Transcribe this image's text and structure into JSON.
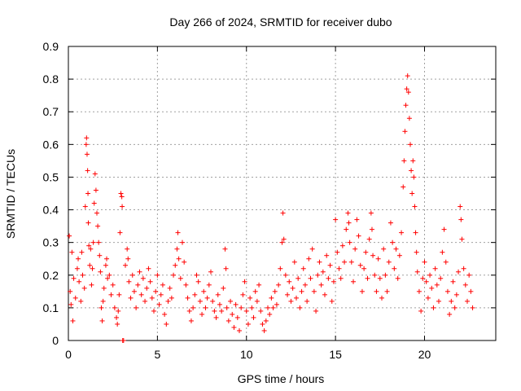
{
  "chart_data": {
    "type": "scatter",
    "title": "Day 266 of 2024, SRMTID for receiver dubo",
    "xlabel": "GPS time / hours",
    "ylabel": "SRMTID / TECUs",
    "xlim": [
      0,
      24
    ],
    "ylim": [
      0,
      0.9
    ],
    "xticks": [
      0,
      5,
      10,
      15,
      20
    ],
    "xtick_labels": [
      "0",
      "5",
      "10",
      "15",
      "20"
    ],
    "yticks": [
      0,
      0.1,
      0.2,
      0.3,
      0.4,
      0.5,
      0.6,
      0.7,
      0.8,
      0.9
    ],
    "ytick_labels": [
      "0",
      "0.1",
      "0.2",
      "0.3",
      "0.4",
      "0.5",
      "0.6",
      "0.7",
      "0.8",
      "0.9"
    ],
    "grid": true,
    "marker": "+",
    "color": "#ff0000",
    "series": [
      {
        "name": "SRMTID",
        "points": [
          [
            0.05,
            0.32
          ],
          [
            0.1,
            0.15
          ],
          [
            0.15,
            0.11
          ],
          [
            0.2,
            0.27
          ],
          [
            0.25,
            0.06
          ],
          [
            0.3,
            0.19
          ],
          [
            0.4,
            0.13
          ],
          [
            0.5,
            0.22
          ],
          [
            0.55,
            0.25
          ],
          [
            0.6,
            0.18
          ],
          [
            0.7,
            0.12
          ],
          [
            0.75,
            0.27
          ],
          [
            0.8,
            0.2
          ],
          [
            0.9,
            0.16
          ],
          [
            0.95,
            0.41
          ],
          [
            1.0,
            0.6
          ],
          [
            1.02,
            0.62
          ],
          [
            1.05,
            0.57
          ],
          [
            1.08,
            0.52
          ],
          [
            1.1,
            0.45
          ],
          [
            1.12,
            0.36
          ],
          [
            1.15,
            0.29
          ],
          [
            1.2,
            0.23
          ],
          [
            1.25,
            0.28
          ],
          [
            1.3,
            0.17
          ],
          [
            1.35,
            0.22
          ],
          [
            1.4,
            0.3
          ],
          [
            1.45,
            0.42
          ],
          [
            1.5,
            0.51
          ],
          [
            1.55,
            0.46
          ],
          [
            1.6,
            0.39
          ],
          [
            1.65,
            0.35
          ],
          [
            1.7,
            0.3
          ],
          [
            1.75,
            0.26
          ],
          [
            1.8,
            0.21
          ],
          [
            1.85,
            0.1
          ],
          [
            1.9,
            0.06
          ],
          [
            1.95,
            0.12
          ],
          [
            2.0,
            0.16
          ],
          [
            2.1,
            0.23
          ],
          [
            2.15,
            0.25
          ],
          [
            2.2,
            0.19
          ],
          [
            2.3,
            0.2
          ],
          [
            2.4,
            0.14
          ],
          [
            2.5,
            0.17
          ],
          [
            2.6,
            0.1
          ],
          [
            2.7,
            0.07
          ],
          [
            2.75,
            0.05
          ],
          [
            2.8,
            0.09
          ],
          [
            2.85,
            0.14
          ],
          [
            2.9,
            0.33
          ],
          [
            2.95,
            0.45
          ],
          [
            3.0,
            0.44
          ],
          [
            3.02,
            0.41
          ],
          [
            3.05,
            0.0
          ],
          [
            3.1,
            0.0
          ],
          [
            3.2,
            0.23
          ],
          [
            3.3,
            0.28
          ],
          [
            3.35,
            0.25
          ],
          [
            3.4,
            0.18
          ],
          [
            3.5,
            0.13
          ],
          [
            3.6,
            0.2
          ],
          [
            3.7,
            0.15
          ],
          [
            3.8,
            0.1
          ],
          [
            3.9,
            0.17
          ],
          [
            4.0,
            0.21
          ],
          [
            4.1,
            0.14
          ],
          [
            4.2,
            0.19
          ],
          [
            4.3,
            0.12
          ],
          [
            4.4,
            0.16
          ],
          [
            4.5,
            0.22
          ],
          [
            4.6,
            0.18
          ],
          [
            4.7,
            0.13
          ],
          [
            4.8,
            0.09
          ],
          [
            4.9,
            0.15
          ],
          [
            5.0,
            0.2
          ],
          [
            5.1,
            0.11
          ],
          [
            5.2,
            0.14
          ],
          [
            5.3,
            0.17
          ],
          [
            5.4,
            0.08
          ],
          [
            5.5,
            0.05
          ],
          [
            5.6,
            0.12
          ],
          [
            5.7,
            0.16
          ],
          [
            5.8,
            0.13
          ],
          [
            5.9,
            0.2
          ],
          [
            6.0,
            0.23
          ],
          [
            6.1,
            0.28
          ],
          [
            6.15,
            0.33
          ],
          [
            6.2,
            0.25
          ],
          [
            6.3,
            0.19
          ],
          [
            6.4,
            0.3
          ],
          [
            6.5,
            0.24
          ],
          [
            6.6,
            0.17
          ],
          [
            6.7,
            0.13
          ],
          [
            6.8,
            0.09
          ],
          [
            6.9,
            0.06
          ],
          [
            7.0,
            0.1
          ],
          [
            7.1,
            0.14
          ],
          [
            7.2,
            0.2
          ],
          [
            7.3,
            0.18
          ],
          [
            7.4,
            0.12
          ],
          [
            7.5,
            0.08
          ],
          [
            7.6,
            0.15
          ],
          [
            7.7,
            0.1
          ],
          [
            7.8,
            0.13
          ],
          [
            7.9,
            0.17
          ],
          [
            8.0,
            0.21
          ],
          [
            8.1,
            0.12
          ],
          [
            8.2,
            0.09
          ],
          [
            8.3,
            0.07
          ],
          [
            8.4,
            0.14
          ],
          [
            8.5,
            0.11
          ],
          [
            8.6,
            0.09
          ],
          [
            8.7,
            0.16
          ],
          [
            8.8,
            0.28
          ],
          [
            8.85,
            0.22
          ],
          [
            8.9,
            0.1
          ],
          [
            9.0,
            0.06
          ],
          [
            9.1,
            0.12
          ],
          [
            9.2,
            0.08
          ],
          [
            9.3,
            0.04
          ],
          [
            9.4,
            0.11
          ],
          [
            9.5,
            0.07
          ],
          [
            9.6,
            0.03
          ],
          [
            9.7,
            0.1
          ],
          [
            9.8,
            0.14
          ],
          [
            9.9,
            0.18
          ],
          [
            10.0,
            0.09
          ],
          [
            10.1,
            0.05
          ],
          [
            10.2,
            0.13
          ],
          [
            10.3,
            0.1
          ],
          [
            10.4,
            0.07
          ],
          [
            10.5,
            0.15
          ],
          [
            10.6,
            0.12
          ],
          [
            10.7,
            0.17
          ],
          [
            10.8,
            0.09
          ],
          [
            10.9,
            0.05
          ],
          [
            11.0,
            0.03
          ],
          [
            11.1,
            0.06
          ],
          [
            11.2,
            0.1
          ],
          [
            11.3,
            0.08
          ],
          [
            11.4,
            0.13
          ],
          [
            11.5,
            0.1
          ],
          [
            11.6,
            0.15
          ],
          [
            11.7,
            0.11
          ],
          [
            11.8,
            0.17
          ],
          [
            11.9,
            0.22
          ],
          [
            12.0,
            0.3
          ],
          [
            12.05,
            0.39
          ],
          [
            12.1,
            0.31
          ],
          [
            12.2,
            0.2
          ],
          [
            12.3,
            0.14
          ],
          [
            12.4,
            0.18
          ],
          [
            12.5,
            0.12
          ],
          [
            12.6,
            0.16
          ],
          [
            12.7,
            0.24
          ],
          [
            12.8,
            0.13
          ],
          [
            12.9,
            0.19
          ],
          [
            13.0,
            0.1
          ],
          [
            13.1,
            0.15
          ],
          [
            13.2,
            0.22
          ],
          [
            13.3,
            0.17
          ],
          [
            13.4,
            0.12
          ],
          [
            13.5,
            0.25
          ],
          [
            13.6,
            0.19
          ],
          [
            13.7,
            0.28
          ],
          [
            13.8,
            0.15
          ],
          [
            13.9,
            0.09
          ],
          [
            14.0,
            0.2
          ],
          [
            14.1,
            0.24
          ],
          [
            14.2,
            0.17
          ],
          [
            14.3,
            0.21
          ],
          [
            14.4,
            0.14
          ],
          [
            14.5,
            0.26
          ],
          [
            14.6,
            0.19
          ],
          [
            14.7,
            0.23
          ],
          [
            14.8,
            0.12
          ],
          [
            14.9,
            0.18
          ],
          [
            15.0,
            0.37
          ],
          [
            15.1,
            0.27
          ],
          [
            15.2,
            0.22
          ],
          [
            15.3,
            0.19
          ],
          [
            15.4,
            0.29
          ],
          [
            15.5,
            0.24
          ],
          [
            15.6,
            0.34
          ],
          [
            15.7,
            0.39
          ],
          [
            15.75,
            0.36
          ],
          [
            15.8,
            0.3
          ],
          [
            15.9,
            0.24
          ],
          [
            16.0,
            0.18
          ],
          [
            16.1,
            0.28
          ],
          [
            16.2,
            0.37
          ],
          [
            16.3,
            0.32
          ],
          [
            16.4,
            0.23
          ],
          [
            16.5,
            0.15
          ],
          [
            16.6,
            0.22
          ],
          [
            16.7,
            0.27
          ],
          [
            16.8,
            0.19
          ],
          [
            16.9,
            0.31
          ],
          [
            17.0,
            0.39
          ],
          [
            17.05,
            0.34
          ],
          [
            17.1,
            0.26
          ],
          [
            17.2,
            0.2
          ],
          [
            17.3,
            0.15
          ],
          [
            17.4,
            0.25
          ],
          [
            17.5,
            0.19
          ],
          [
            17.6,
            0.13
          ],
          [
            17.7,
            0.28
          ],
          [
            17.8,
            0.2
          ],
          [
            17.9,
            0.15
          ],
          [
            18.0,
            0.24
          ],
          [
            18.1,
            0.36
          ],
          [
            18.2,
            0.3
          ],
          [
            18.3,
            0.22
          ],
          [
            18.4,
            0.28
          ],
          [
            18.5,
            0.19
          ],
          [
            18.6,
            0.26
          ],
          [
            18.7,
            0.33
          ],
          [
            18.8,
            0.47
          ],
          [
            18.85,
            0.55
          ],
          [
            18.9,
            0.64
          ],
          [
            18.95,
            0.72
          ],
          [
            19.0,
            0.77
          ],
          [
            19.05,
            0.81
          ],
          [
            19.1,
            0.76
          ],
          [
            19.15,
            0.68
          ],
          [
            19.2,
            0.6
          ],
          [
            19.25,
            0.52
          ],
          [
            19.3,
            0.45
          ],
          [
            19.35,
            0.55
          ],
          [
            19.4,
            0.5
          ],
          [
            19.45,
            0.41
          ],
          [
            19.5,
            0.33
          ],
          [
            19.55,
            0.27
          ],
          [
            19.6,
            0.21
          ],
          [
            19.7,
            0.15
          ],
          [
            19.8,
            0.09
          ],
          [
            19.9,
            0.19
          ],
          [
            20.0,
            0.24
          ],
          [
            20.1,
            0.18
          ],
          [
            20.2,
            0.13
          ],
          [
            20.3,
            0.2
          ],
          [
            20.4,
            0.16
          ],
          [
            20.5,
            0.1
          ],
          [
            20.6,
            0.22
          ],
          [
            20.7,
            0.17
          ],
          [
            20.8,
            0.12
          ],
          [
            20.9,
            0.19
          ],
          [
            21.0,
            0.27
          ],
          [
            21.1,
            0.34
          ],
          [
            21.2,
            0.24
          ],
          [
            21.3,
            0.15
          ],
          [
            21.4,
            0.08
          ],
          [
            21.5,
            0.12
          ],
          [
            21.6,
            0.18
          ],
          [
            21.7,
            0.1
          ],
          [
            21.8,
            0.14
          ],
          [
            21.9,
            0.21
          ],
          [
            22.0,
            0.41
          ],
          [
            22.05,
            0.37
          ],
          [
            22.1,
            0.31
          ],
          [
            22.2,
            0.22
          ],
          [
            22.3,
            0.17
          ],
          [
            22.4,
            0.12
          ],
          [
            22.5,
            0.2
          ],
          [
            22.6,
            0.15
          ],
          [
            22.7,
            0.1
          ]
        ]
      }
    ]
  }
}
